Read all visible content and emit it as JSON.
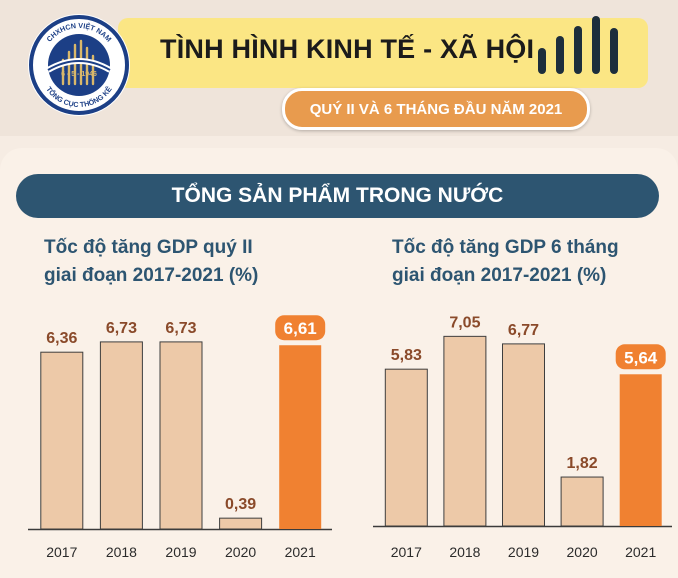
{
  "header": {
    "title": "TÌNH HÌNH KINH TẾ - XÃ HỘI",
    "subtitle": "QUÝ II VÀ 6 THÁNG ĐẦU NĂM 2021",
    "logo": {
      "top_text": "CHXHCN VIỆT NAM",
      "date_text": "6 - 5 - 1946",
      "bottom_text": "TỔNG CỤC THỐNG KÊ"
    }
  },
  "section": {
    "title": "TỔNG SẢN PHẨM TRONG NƯỚC"
  },
  "colors": {
    "bar_normal": "#edc9a8",
    "bar_highlight": "#f08131",
    "value_text": "#8a4a2a",
    "header_blue": "#2d5571"
  },
  "chart_data": [
    {
      "type": "bar",
      "title_lines": [
        "Tốc độ tăng GDP quý II",
        "giai đoạn 2017-2021 (%)"
      ],
      "categories": [
        "2017",
        "2018",
        "2019",
        "2020",
        "2021"
      ],
      "values": [
        6.36,
        6.73,
        6.73,
        0.39,
        6.61
      ],
      "labels": [
        "6,36",
        "6,73",
        "6,73",
        "0,39",
        "6,61"
      ],
      "highlight_index": 4
    },
    {
      "type": "bar",
      "title_lines": [
        "Tốc độ tăng GDP 6 tháng",
        "giai đoạn 2017-2021 (%)"
      ],
      "categories": [
        "2017",
        "2018",
        "2019",
        "2020",
        "2021"
      ],
      "values": [
        5.83,
        7.05,
        6.77,
        1.82,
        5.64
      ],
      "labels": [
        "5,83",
        "7,05",
        "6,77",
        "1,82",
        "5,64"
      ],
      "highlight_index": 4
    }
  ]
}
